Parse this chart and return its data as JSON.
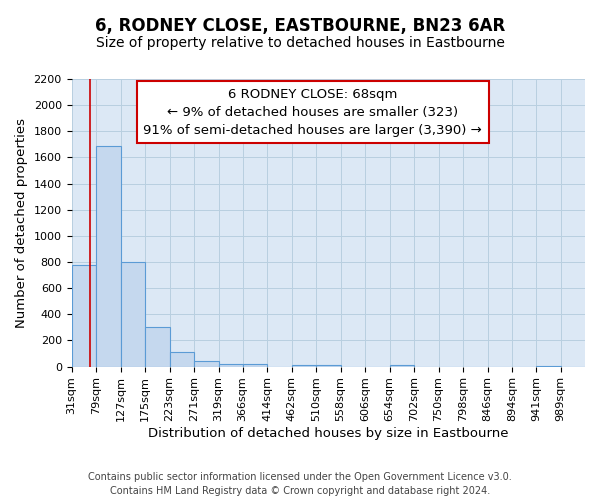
{
  "title": "6, RODNEY CLOSE, EASTBOURNE, BN23 6AR",
  "subtitle": "Size of property relative to detached houses in Eastbourne",
  "xlabel": "Distribution of detached houses by size in Eastbourne",
  "ylabel": "Number of detached properties",
  "footer_lines": [
    "Contains HM Land Registry data © Crown copyright and database right 2024.",
    "Contains public sector information licensed under the Open Government Licence v3.0."
  ],
  "bin_labels": [
    "31sqm",
    "79sqm",
    "127sqm",
    "175sqm",
    "223sqm",
    "271sqm",
    "319sqm",
    "366sqm",
    "414sqm",
    "462sqm",
    "510sqm",
    "558sqm",
    "606sqm",
    "654sqm",
    "702sqm",
    "750sqm",
    "798sqm",
    "846sqm",
    "894sqm",
    "941sqm",
    "989sqm"
  ],
  "bar_values": [
    780,
    1690,
    800,
    300,
    110,
    40,
    20,
    20,
    0,
    15,
    10,
    0,
    0,
    10,
    0,
    0,
    0,
    0,
    0,
    5,
    0
  ],
  "bar_color": "#c5d8ee",
  "bar_edge_color": "#5b9bd5",
  "annotation_line1": "6 RODNEY CLOSE: 68sqm",
  "annotation_line2": "← 9% of detached houses are smaller (323)",
  "annotation_line3": "91% of semi-detached houses are larger (3,390) →",
  "annotation_box_edge_color": "#cc0000",
  "red_line_x": 68,
  "ylim": [
    0,
    2200
  ],
  "yticks": [
    0,
    200,
    400,
    600,
    800,
    1000,
    1200,
    1400,
    1600,
    1800,
    2000,
    2200
  ],
  "background_color": "#ffffff",
  "plot_bg_color": "#dce8f5",
  "grid_color": "#b8cfe0",
  "title_fontsize": 12,
  "subtitle_fontsize": 10,
  "axis_label_fontsize": 9.5,
  "tick_fontsize": 8,
  "annotation_fontsize": 9.5,
  "footer_fontsize": 7
}
